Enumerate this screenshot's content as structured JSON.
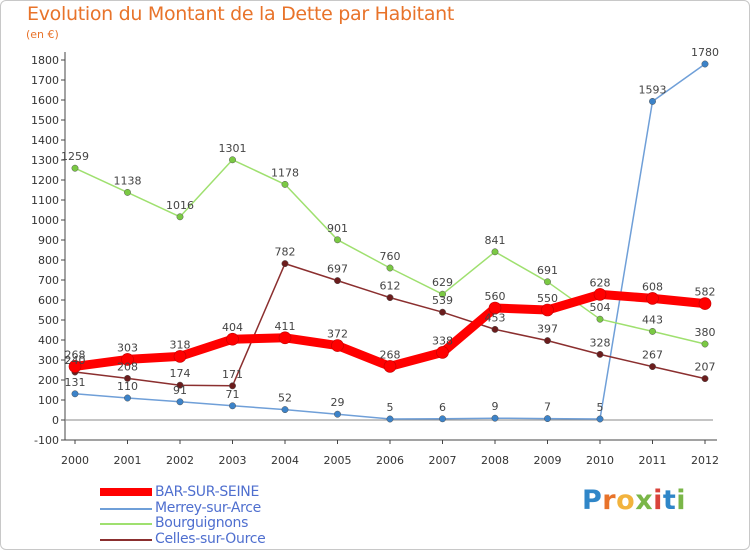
{
  "title": "Evolution du Montant de la Dette par Habitant",
  "subtitle": "(en €)",
  "logo": {
    "text": "Proxiti",
    "letters": [
      {
        "char": "P",
        "color": "#2f86c8"
      },
      {
        "char": "r",
        "color": "#e8732a"
      },
      {
        "char": "o",
        "color": "#f2b33d"
      },
      {
        "char": "x",
        "color": "#7ab648"
      },
      {
        "char": "i",
        "color": "#d9433b"
      },
      {
        "char": "t",
        "color": "#2f86c8"
      },
      {
        "char": "i",
        "color": "#7ab648"
      }
    ]
  },
  "chart_data": {
    "type": "line",
    "title": "Evolution du Montant de la Dette par Habitant",
    "subtitle": "(en €)",
    "xlabel": "",
    "ylabel": "",
    "x": [
      "2000",
      "2001",
      "2002",
      "2003",
      "2004",
      "2005",
      "2006",
      "2007",
      "2008",
      "2009",
      "2010",
      "2011",
      "2012"
    ],
    "ylim": [
      -100,
      1800
    ],
    "yticks": [
      -100,
      0,
      100,
      200,
      300,
      400,
      500,
      600,
      700,
      800,
      900,
      1000,
      1100,
      1200,
      1300,
      1400,
      1500,
      1600,
      1700,
      1800
    ],
    "grid": false,
    "legend_position": "bottom-left",
    "series": [
      {
        "name": "BAR-SUR-SEINE",
        "color": "#ff0000",
        "marker_color": "#ff0000",
        "style": "thick",
        "values": [
          268,
          303,
          318,
          404,
          411,
          372,
          268,
          338,
          560,
          550,
          628,
          608,
          582
        ],
        "labels": [
          "268",
          "303",
          "318",
          "404",
          "411",
          "372",
          "268",
          "338",
          "560",
          "550",
          "628",
          "608",
          "582"
        ]
      },
      {
        "name": "Merrey-sur-Arce",
        "color": "#6f9fd8",
        "marker_color": "#3c83c9",
        "style": "thin",
        "values": [
          131,
          110,
          91,
          71,
          52,
          29,
          5,
          6,
          9,
          7,
          5,
          1593,
          1780
        ],
        "labels": [
          "131",
          "110",
          "91",
          "71",
          "52",
          "29",
          "5",
          "6",
          "9",
          "7",
          "5",
          "1593",
          "1780"
        ]
      },
      {
        "name": "Bourguignons",
        "color": "#9fe06f",
        "marker_color": "#7ac943",
        "style": "thin",
        "values": [
          1259,
          1138,
          1016,
          1301,
          1178,
          901,
          760,
          629,
          841,
          691,
          504,
          443,
          380
        ],
        "labels": [
          "1259",
          "1138",
          "1016",
          "1301",
          "1178",
          "901",
          "760",
          "629",
          "841",
          "691",
          "504",
          "443",
          "380"
        ]
      },
      {
        "name": "Celles-sur-Ource",
        "color": "#8b2f2f",
        "marker_color": "#6b1d1d",
        "style": "thin",
        "values": [
          240,
          208,
          174,
          171,
          782,
          697,
          612,
          539,
          453,
          397,
          328,
          267,
          207
        ],
        "labels": [
          "240",
          "208",
          "174",
          "171",
          "782",
          "697",
          "612",
          "539",
          "453",
          "397",
          "328",
          "267",
          "207"
        ]
      }
    ]
  }
}
